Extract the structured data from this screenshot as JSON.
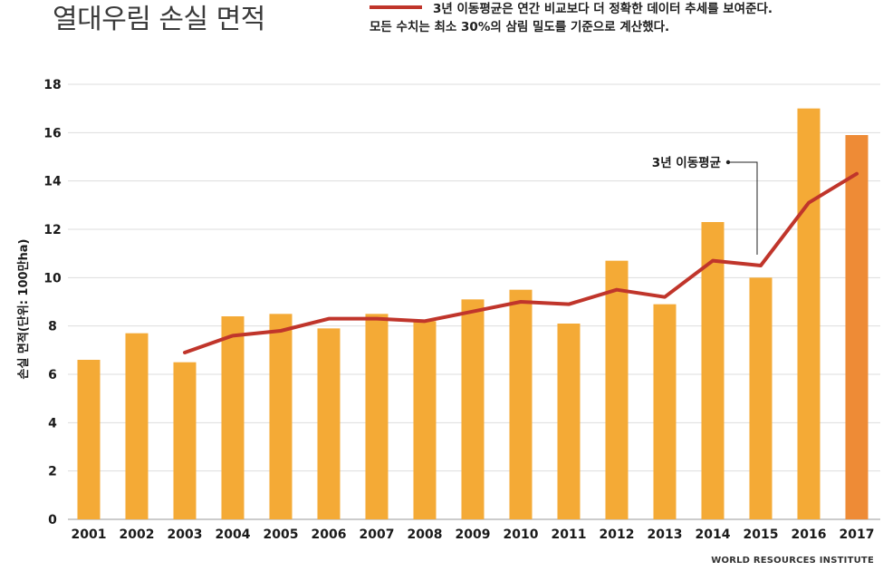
{
  "title": "열대우림 손실 면적",
  "legend": {
    "line1": "3년 이동평균은 연간 비교보다 더 정확한 데이터 추세를 보여준다.",
    "line2": "모든 수치는 최소 30%의 삼림 밀도를 기준으로 계산했다."
  },
  "source": "WORLD RESOURCES INSTITUTE",
  "colors": {
    "bar": "#f4aa36",
    "bar_highlight": "#ee8b36",
    "line": "#c0352b",
    "grid": "#dddddd"
  },
  "chart_data": {
    "type": "bar",
    "ylabel": "손실 면적(단위: 100만ha)",
    "ylim": [
      0,
      18
    ],
    "yticks": [
      0,
      2,
      4,
      6,
      8,
      10,
      12,
      14,
      16,
      18
    ],
    "grid": true,
    "categories": [
      "2001",
      "2002",
      "2003",
      "2004",
      "2005",
      "2006",
      "2007",
      "2008",
      "2009",
      "2010",
      "2011",
      "2012",
      "2013",
      "2014",
      "2015",
      "2016",
      "2017"
    ],
    "series": [
      {
        "type": "bar",
        "values": [
          6.6,
          7.7,
          6.5,
          8.4,
          8.5,
          7.9,
          8.5,
          8.2,
          9.1,
          9.5,
          8.1,
          10.7,
          8.9,
          12.3,
          10.0,
          17.0,
          15.9
        ]
      },
      {
        "name": "3년 이동평균",
        "type": "line",
        "values": [
          null,
          null,
          6.9,
          7.6,
          7.8,
          8.3,
          8.3,
          8.2,
          8.6,
          9.0,
          8.9,
          9.5,
          9.2,
          10.7,
          10.5,
          13.1,
          14.3
        ]
      }
    ],
    "highlight_category": "2017",
    "annotation": {
      "text": "3년 이동평균",
      "category": "2015"
    }
  }
}
